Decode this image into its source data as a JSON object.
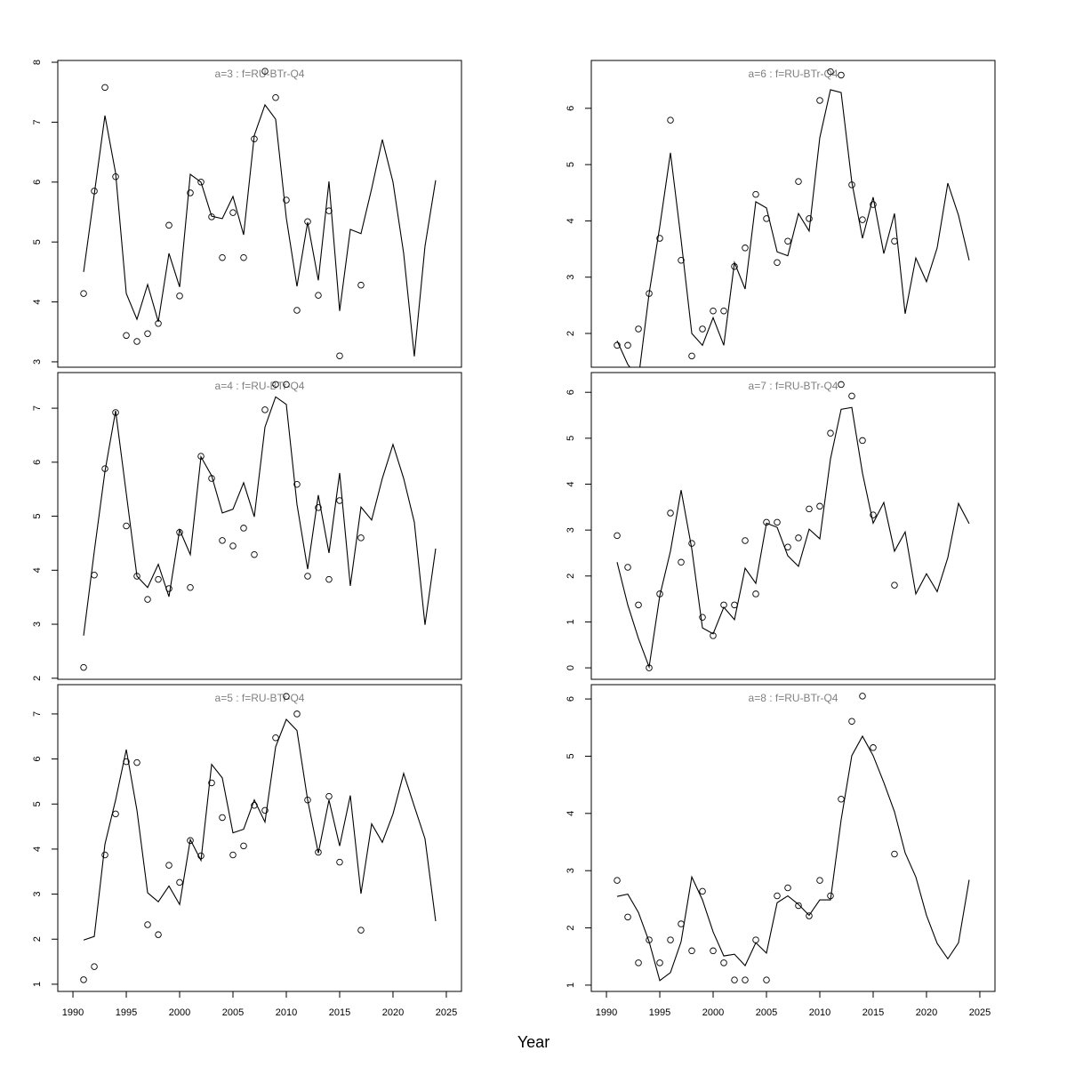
{
  "xlabel": "Year",
  "chart_data": [
    {
      "type": "line",
      "title": "a=3  :  f=RU-BTr-Q4",
      "x": [
        1991,
        1992,
        1993,
        1994,
        1995,
        1996,
        1997,
        1998,
        1999,
        2000,
        2001,
        2002,
        2003,
        2004,
        2005,
        2006,
        2007,
        2008,
        2009,
        2010,
        2011,
        2012,
        2013,
        2014,
        2015,
        2016,
        2017,
        2018,
        2019,
        2020,
        2021,
        2022,
        2023,
        2024
      ],
      "series": [
        {
          "style": "line",
          "color": "#000000",
          "values": [
            4.5,
            5.8,
            7.11,
            6.15,
            4.14,
            3.71,
            4.29,
            3.67,
            4.81,
            4.25,
            6.13,
            6.0,
            5.43,
            5.39,
            5.76,
            5.12,
            6.78,
            7.29,
            7.05,
            5.4,
            4.26,
            5.33,
            4.36,
            6.01,
            3.85,
            5.21,
            5.14,
            5.89,
            6.71,
            6.0,
            4.81,
            3.09,
            4.93,
            6.03
          ]
        },
        {
          "style": "points",
          "color": "#000000",
          "values": [
            4.14,
            5.85,
            7.58,
            6.09,
            3.44,
            3.34,
            3.47,
            3.64,
            5.28,
            4.1,
            5.82,
            6.0,
            5.42,
            4.74,
            5.49,
            4.74,
            6.72,
            7.85,
            7.41,
            5.7,
            3.86,
            5.34,
            4.11,
            5.52,
            3.1,
            null,
            4.28,
            null,
            null,
            null,
            null,
            null,
            null,
            null
          ]
        }
      ],
      "xlim": [
        1988.58,
        2026.42
      ],
      "ylim": [
        2.91,
        8.03
      ],
      "yticks": [
        3,
        4,
        5,
        6,
        7,
        8
      ]
    },
    {
      "type": "line",
      "title": "a=4  :  f=RU-BTr-Q4",
      "x": [
        1991,
        1992,
        1993,
        1994,
        1995,
        1996,
        1997,
        1998,
        1999,
        2000,
        2001,
        2002,
        2003,
        2004,
        2005,
        2006,
        2007,
        2008,
        2009,
        2010,
        2011,
        2012,
        2013,
        2014,
        2015,
        2016,
        2017,
        2018,
        2019,
        2020,
        2021,
        2022,
        2023,
        2024
      ],
      "series": [
        {
          "style": "line",
          "color": "#000000",
          "values": [
            2.79,
            4.35,
            5.83,
            6.95,
            5.42,
            3.89,
            3.68,
            4.11,
            3.51,
            4.75,
            4.29,
            6.1,
            5.75,
            5.06,
            5.13,
            5.62,
            4.99,
            6.65,
            7.21,
            7.07,
            5.22,
            4.02,
            5.39,
            4.32,
            5.8,
            3.71,
            5.17,
            4.93,
            5.7,
            6.33,
            5.7,
            4.89,
            2.99,
            4.4
          ]
        },
        {
          "style": "points",
          "color": "#000000",
          "values": [
            2.2,
            3.91,
            5.88,
            6.92,
            4.82,
            3.89,
            3.46,
            3.83,
            3.66,
            4.7,
            3.68,
            6.11,
            5.7,
            4.55,
            4.45,
            4.78,
            4.29,
            6.97,
            7.44,
            7.44,
            5.59,
            3.89,
            5.16,
            3.83,
            5.29,
            null,
            4.6,
            null,
            null,
            null,
            null,
            null,
            null,
            null
          ]
        }
      ],
      "xlim": [
        1988.58,
        2026.42
      ],
      "ylim": [
        1.98,
        7.66
      ],
      "yticks": [
        2,
        3,
        4,
        5,
        6,
        7
      ]
    },
    {
      "type": "line",
      "title": "a=5  :  f=RU-BTr-Q4",
      "x": [
        1991,
        1992,
        1993,
        1994,
        1995,
        1996,
        1997,
        1998,
        1999,
        2000,
        2001,
        2002,
        2003,
        2004,
        2005,
        2006,
        2007,
        2008,
        2009,
        2010,
        2011,
        2012,
        2013,
        2014,
        2015,
        2016,
        2017,
        2018,
        2019,
        2020,
        2021,
        2022,
        2023,
        2024
      ],
      "series": [
        {
          "style": "line",
          "color": "#000000",
          "values": [
            1.98,
            2.06,
            4.11,
            5.09,
            6.21,
            4.86,
            3.03,
            2.83,
            3.18,
            2.77,
            4.21,
            3.75,
            5.88,
            5.58,
            4.36,
            4.44,
            5.09,
            4.6,
            6.27,
            6.88,
            6.63,
            5.09,
            3.91,
            5.09,
            4.07,
            5.19,
            3.01,
            4.56,
            4.15,
            4.78,
            5.68,
            4.95,
            4.23,
            2.4
          ]
        },
        {
          "style": "points",
          "color": "#000000",
          "values": [
            1.1,
            1.39,
            3.87,
            4.78,
            5.94,
            5.92,
            2.32,
            2.1,
            3.64,
            3.26,
            4.19,
            3.85,
            5.47,
            4.7,
            3.87,
            4.07,
            4.97,
            4.86,
            6.47,
            7.39,
            7.0,
            5.09,
            3.93,
            5.17,
            3.71,
            null,
            2.2,
            null,
            null,
            null,
            null,
            null,
            null,
            null
          ]
        }
      ],
      "xlim": [
        1988.58,
        2026.42
      ],
      "ylim": [
        0.84,
        7.65
      ],
      "yticks": [
        1,
        2,
        3,
        4,
        5,
        6,
        7
      ],
      "xticks": [
        1990,
        1995,
        2000,
        2005,
        2010,
        2015,
        2020,
        2025
      ]
    },
    {
      "type": "line",
      "title": "a=6  :  f=RU-BTr-Q4",
      "x": [
        1991,
        1992,
        1993,
        1994,
        1995,
        1996,
        1997,
        1998,
        1999,
        2000,
        2001,
        2002,
        2003,
        2004,
        2005,
        2006,
        2007,
        2008,
        2009,
        2010,
        2011,
        2012,
        2013,
        2014,
        2015,
        2016,
        2017,
        2018,
        2019,
        2020,
        2021,
        2022,
        2023,
        2024
      ],
      "series": [
        {
          "style": "line",
          "color": "#000000",
          "values": [
            1.87,
            1.45,
            1.2,
            2.71,
            3.9,
            5.21,
            3.66,
            2.0,
            1.79,
            2.28,
            1.79,
            3.26,
            2.79,
            4.34,
            4.23,
            3.45,
            3.38,
            4.13,
            3.82,
            5.48,
            6.33,
            6.28,
            4.69,
            3.69,
            4.42,
            3.42,
            4.13,
            2.35,
            3.34,
            2.92,
            3.52,
            4.67,
            4.1,
            3.3
          ]
        },
        {
          "style": "points",
          "color": "#000000",
          "values": [
            1.79,
            1.79,
            2.08,
            2.71,
            3.69,
            5.79,
            3.3,
            1.6,
            2.08,
            2.4,
            2.4,
            3.19,
            3.52,
            4.47,
            4.04,
            3.26,
            3.64,
            4.7,
            4.04,
            6.14,
            6.65,
            6.59,
            4.64,
            4.02,
            4.29,
            null,
            3.64,
            null,
            null,
            null,
            null,
            null,
            null,
            null
          ]
        }
      ],
      "xlim": [
        1988.58,
        2026.42
      ],
      "ylim": [
        1.4,
        6.85
      ],
      "yticks": [
        2,
        3,
        4,
        5,
        6
      ]
    },
    {
      "type": "line",
      "title": "a=7  :  f=RU-BTr-Q4",
      "x": [
        1991,
        1992,
        1993,
        1994,
        1995,
        1996,
        1997,
        1998,
        1999,
        2000,
        2001,
        2002,
        2003,
        2004,
        2005,
        2006,
        2007,
        2008,
        2009,
        2010,
        2011,
        2012,
        2013,
        2014,
        2015,
        2016,
        2017,
        2018,
        2019,
        2020,
        2021,
        2022,
        2023,
        2024
      ],
      "series": [
        {
          "style": "line",
          "color": "#000000",
          "values": [
            2.3,
            1.37,
            0.64,
            0.02,
            1.57,
            2.54,
            3.87,
            2.59,
            0.87,
            0.74,
            1.32,
            1.05,
            2.17,
            1.84,
            3.15,
            3.06,
            2.44,
            2.21,
            3.02,
            2.81,
            4.55,
            5.63,
            5.67,
            4.24,
            3.15,
            3.6,
            2.54,
            2.96,
            1.61,
            2.05,
            1.66,
            2.4,
            3.58,
            3.14
          ]
        },
        {
          "style": "points",
          "color": "#000000",
          "values": [
            2.88,
            2.19,
            1.37,
            0,
            1.61,
            3.37,
            2.3,
            2.71,
            1.1,
            0.7,
            1.37,
            1.37,
            2.77,
            1.61,
            3.17,
            3.17,
            2.63,
            2.83,
            3.46,
            3.52,
            5.11,
            6.17,
            5.92,
            4.95,
            3.33,
            null,
            1.8,
            null,
            null,
            null,
            null,
            null,
            null,
            null
          ]
        }
      ],
      "xlim": [
        1988.58,
        2026.42
      ],
      "ylim": [
        -0.25,
        6.43
      ],
      "yticks": [
        0,
        1,
        2,
        3,
        4,
        5,
        6
      ]
    },
    {
      "type": "line",
      "title": "a=8  :  f=RU-BTr-Q4",
      "x": [
        1991,
        1992,
        1993,
        1994,
        1995,
        1996,
        1997,
        1998,
        1999,
        2000,
        2001,
        2002,
        2003,
        2004,
        2005,
        2006,
        2007,
        2008,
        2009,
        2010,
        2011,
        2012,
        2013,
        2014,
        2015,
        2016,
        2017,
        2018,
        2019,
        2020,
        2021,
        2022,
        2023,
        2024
      ],
      "series": [
        {
          "style": "line",
          "color": "#000000",
          "values": [
            2.55,
            2.59,
            2.27,
            1.76,
            1.08,
            1.22,
            1.76,
            2.89,
            2.49,
            1.93,
            1.51,
            1.54,
            1.34,
            1.74,
            1.56,
            2.44,
            2.56,
            2.41,
            2.22,
            2.49,
            2.49,
            3.89,
            5.01,
            5.35,
            5.01,
            4.54,
            4.03,
            3.31,
            2.89,
            2.22,
            1.73,
            1.46,
            1.74,
            2.84
          ]
        },
        {
          "style": "points",
          "color": "#000000",
          "values": [
            2.83,
            2.19,
            1.39,
            1.79,
            1.39,
            1.79,
            2.07,
            1.6,
            2.64,
            1.6,
            1.39,
            1.09,
            1.09,
            1.79,
            1.09,
            2.56,
            2.7,
            2.39,
            2.21,
            2.83,
            2.56,
            4.25,
            5.61,
            6.05,
            5.15,
            null,
            3.29,
            null,
            null,
            null,
            null,
            null,
            null,
            null
          ]
        }
      ],
      "xlim": [
        1988.58,
        2026.42
      ],
      "ylim": [
        0.89,
        6.25
      ],
      "yticks": [
        1,
        2,
        3,
        4,
        5,
        6
      ],
      "xticks": [
        1990,
        1995,
        2000,
        2005,
        2010,
        2015,
        2020,
        2025
      ]
    }
  ]
}
